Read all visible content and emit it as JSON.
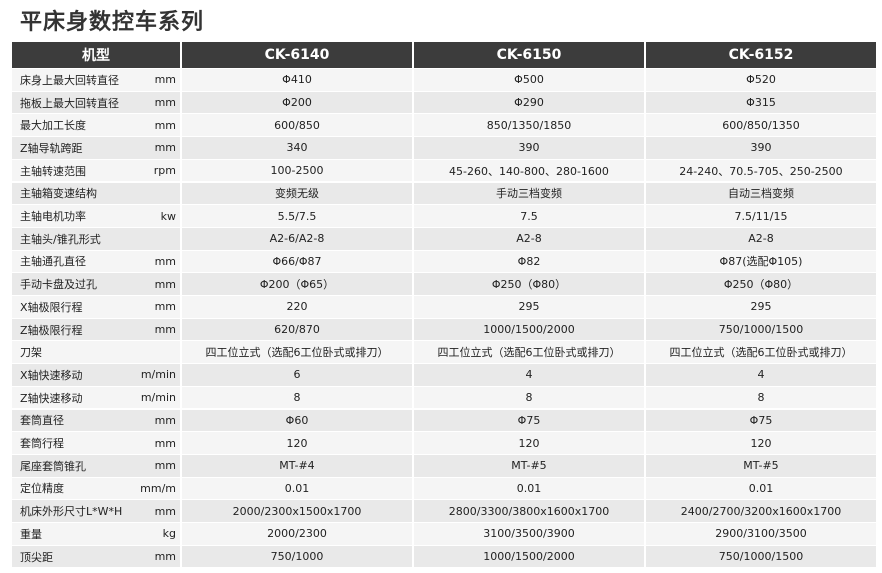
{
  "title": "平床身数控车系列",
  "table": {
    "header": [
      "机型",
      "CK-6140",
      "CK-6150",
      "CK-6152"
    ],
    "rows": [
      {
        "label": "床身上最大回转直径",
        "unit": "mm",
        "values": [
          "Φ410",
          "Φ500",
          "Φ520"
        ]
      },
      {
        "label": "拖板上最大回转直径",
        "unit": "mm",
        "values": [
          "Φ200",
          "Φ290",
          "Φ315"
        ]
      },
      {
        "label": "最大加工长度",
        "unit": "mm",
        "values": [
          "600/850",
          "850/1350/1850",
          "600/850/1350"
        ]
      },
      {
        "label": "Z轴导轨跨距",
        "unit": "mm",
        "values": [
          "340",
          "390",
          "390"
        ]
      },
      {
        "label": "主轴转速范围",
        "unit": "rpm",
        "values": [
          "100-2500",
          "45-260、140-800、280-1600",
          "24-240、70.5-705、250-2500"
        ]
      },
      {
        "label": "主轴箱变速结构",
        "values": [
          "变频无级",
          "手动三档变频",
          "自动三档变频"
        ]
      },
      {
        "label": "主轴电机功率",
        "unit": "kw",
        "values": [
          "5.5/7.5",
          "7.5",
          "7.5/11/15"
        ]
      },
      {
        "label": "主轴头/锥孔形式",
        "values": [
          "A2-6/A2-8",
          "A2-8",
          "A2-8"
        ]
      },
      {
        "label": "主轴通孔直径",
        "unit": "mm",
        "values": [
          "Φ66/Φ87",
          "Φ82",
          "Φ87(选配Φ105)"
        ]
      },
      {
        "label": "手动卡盘及过孔",
        "unit": "mm",
        "values": [
          "Φ200（Φ65）",
          "Φ250（Φ80）",
          "Φ250（Φ80）"
        ]
      },
      {
        "label": "X轴极限行程",
        "unit": "mm",
        "values": [
          "220",
          "295",
          "295"
        ]
      },
      {
        "label": "Z轴极限行程",
        "unit": "mm",
        "values": [
          "620/870",
          "1000/1500/2000",
          "750/1000/1500"
        ]
      },
      {
        "label": "刀架",
        "values": [
          "四工位立式（选配6工位卧式或排刀）",
          "四工位立式（选配6工位卧式或排刀）",
          "四工位立式（选配6工位卧式或排刀）"
        ]
      },
      {
        "label": "X轴快速移动",
        "unit": "m/min",
        "values": [
          "6",
          "4",
          "4"
        ]
      },
      {
        "label": "Z轴快速移动",
        "unit": "m/min",
        "values": [
          "8",
          "8",
          "8"
        ]
      },
      {
        "label": "套筒直径",
        "unit": "mm",
        "values": [
          "Φ60",
          "Φ75",
          "Φ75"
        ]
      },
      {
        "label": "套筒行程",
        "unit": "mm",
        "values": [
          "120",
          "120",
          "120"
        ]
      },
      {
        "label": "尾座套筒锥孔",
        "unit": "mm",
        "values": [
          "MT-#4",
          "MT-#5",
          "MT-#5"
        ]
      },
      {
        "label": "定位精度",
        "unit": "mm/m",
        "values": [
          "0.01",
          "0.01",
          "0.01"
        ]
      },
      {
        "label": "机床外形尺寸L*W*H",
        "unit": "mm",
        "values": [
          "2000/2300x1500x1700",
          "2800/3300/3800x1600x1700",
          "2400/2700/3200x1600x1700"
        ]
      },
      {
        "label": "重量",
        "unit": "kg",
        "values": [
          "2000/2300",
          "3100/3500/3900",
          "2900/3100/3500"
        ]
      },
      {
        "label": "顶尖距",
        "unit": "mm",
        "values": [
          "750/1000",
          "1000/1500/2000",
          "750/1000/1500"
        ]
      }
    ]
  }
}
